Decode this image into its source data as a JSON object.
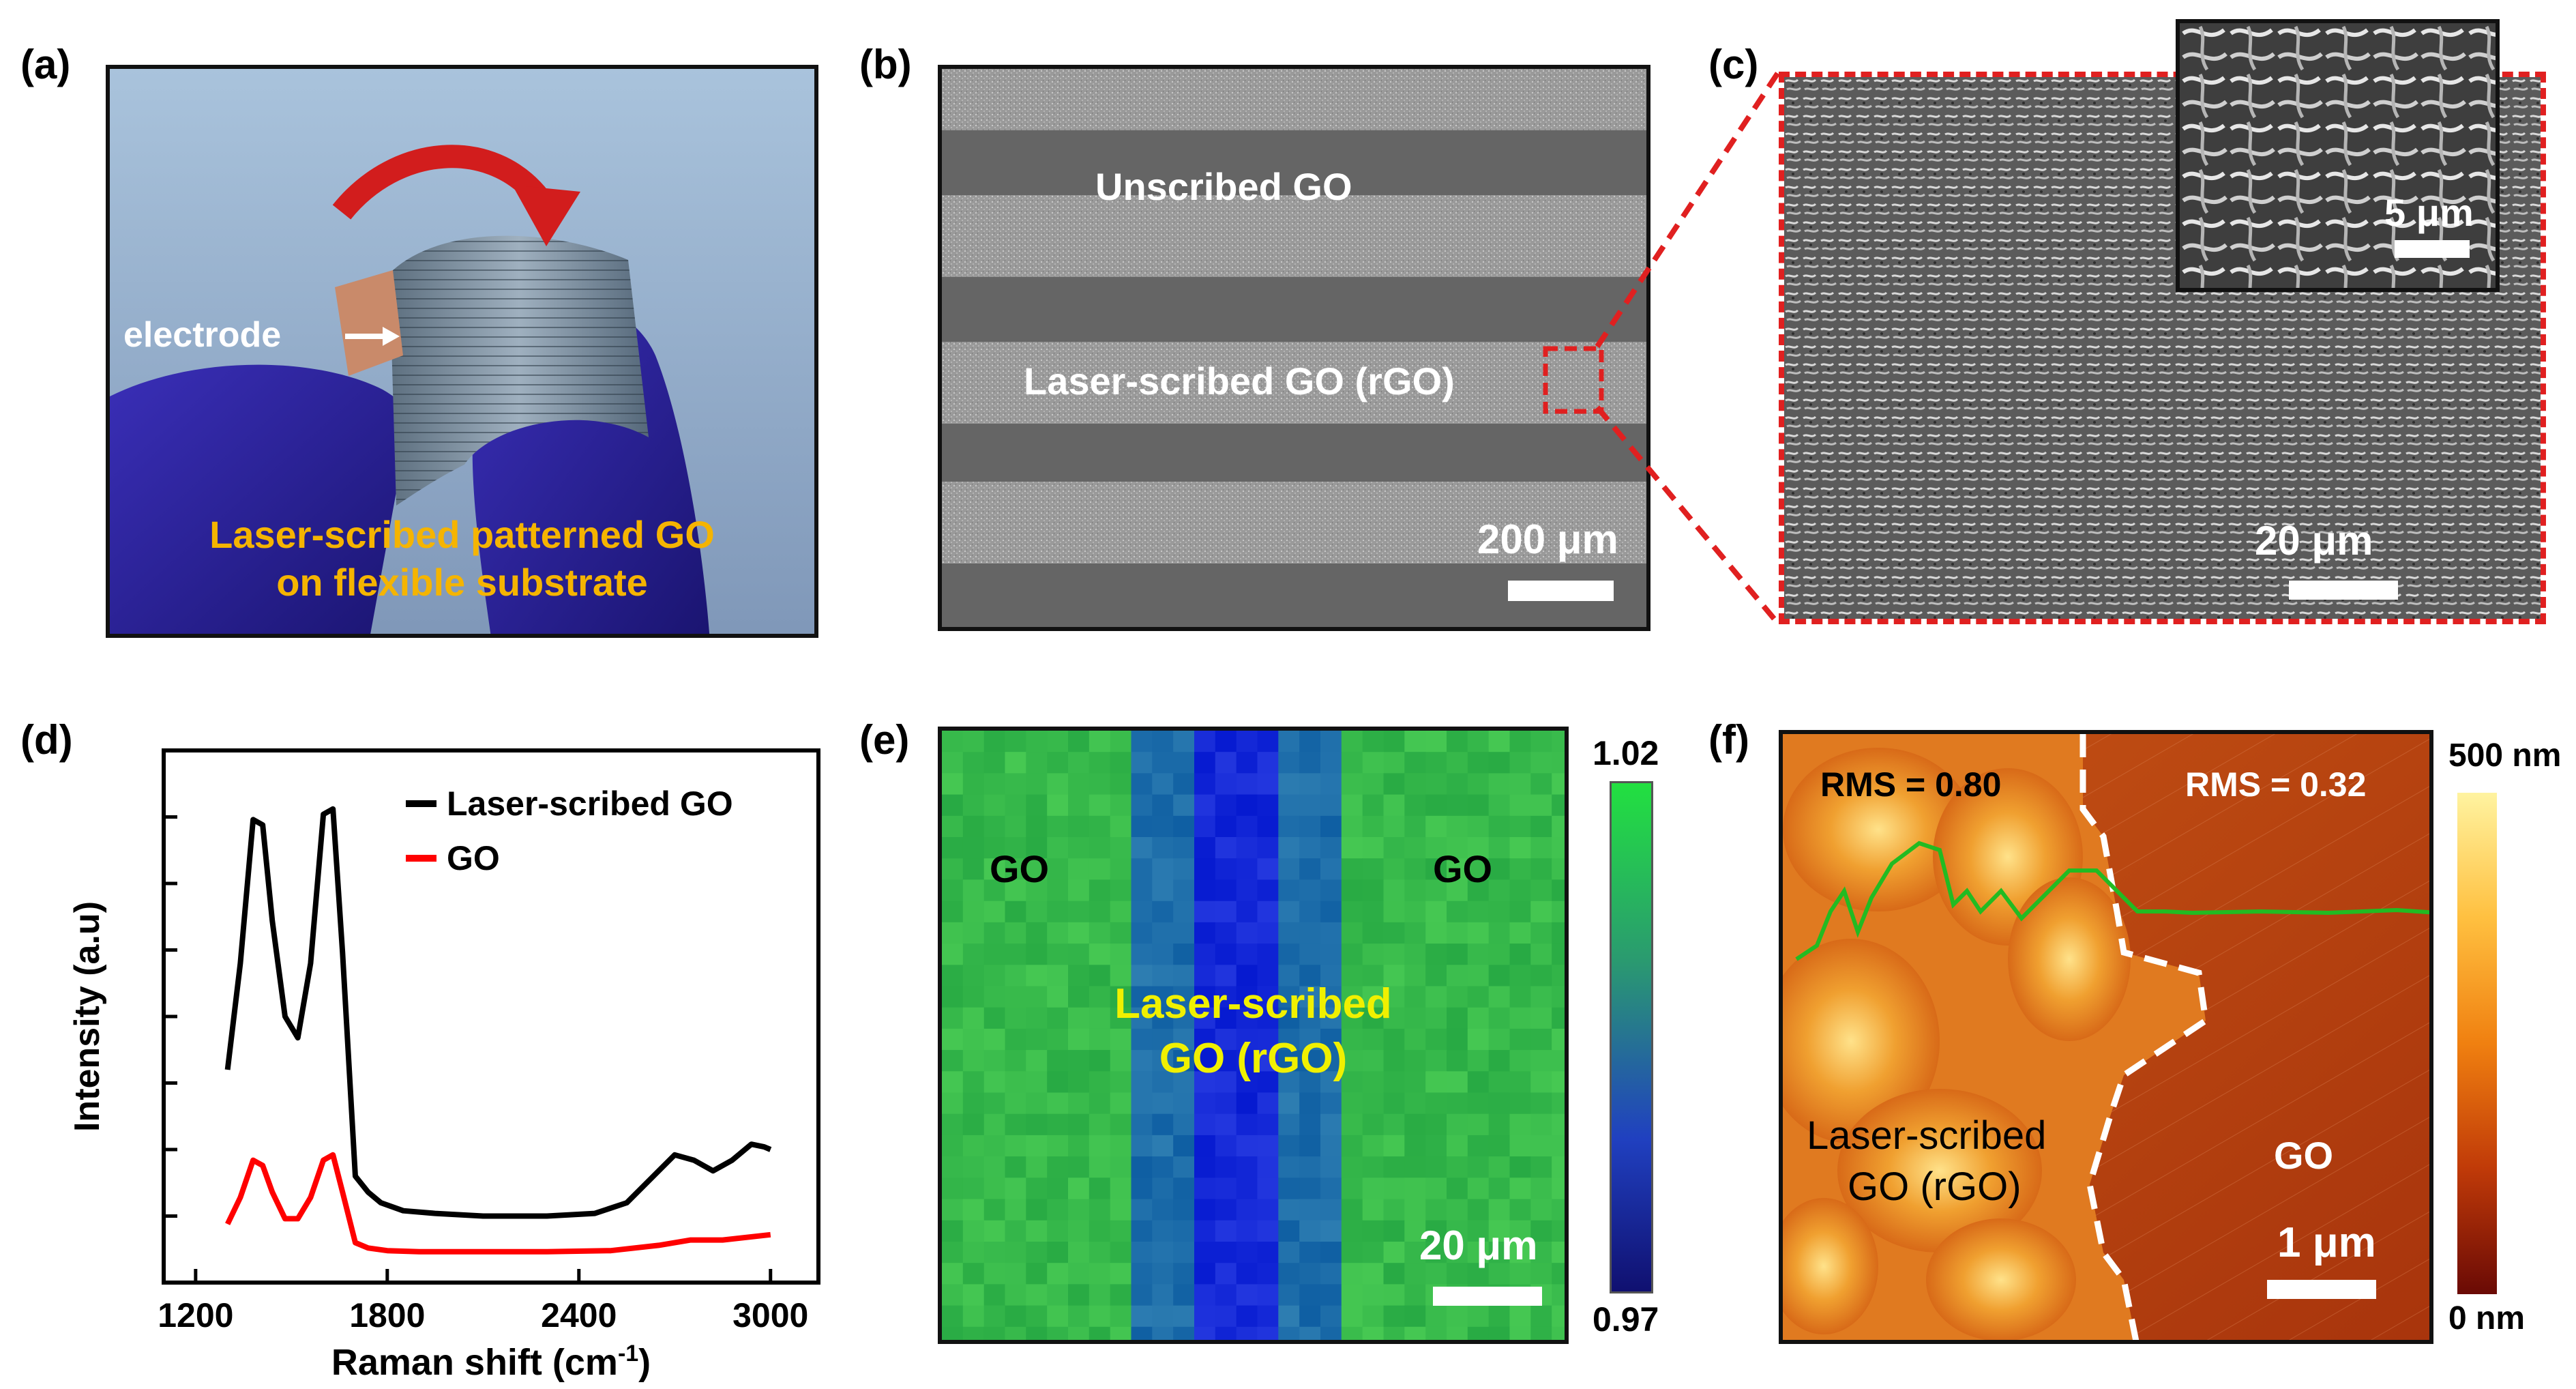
{
  "panels": {
    "a": {
      "letter": "(a)",
      "electrode_label": "electrode",
      "caption_line1": "Laser-scribed patterned GO",
      "caption_line2": "on flexible substrate"
    },
    "b": {
      "letter": "(b)",
      "unscribed_label": "Unscribed GO",
      "scribed_label": "Laser-scribed GO (rGO)",
      "scale_bar": "200 μm"
    },
    "c": {
      "letter": "(c)",
      "scale_bar": "20 μm",
      "inset_scale_bar": "5 μm"
    },
    "d": {
      "letter": "(d)",
      "legend": [
        "Laser-scribed GO",
        "GO"
      ],
      "xlabel": "Raman shift (cm",
      "xlabel_sup": "-1",
      "xlabel_end": ")",
      "ylabel": "Intensity (a.u)",
      "x_ticks": [
        "1200",
        "1800",
        "2400",
        "3000"
      ]
    },
    "e": {
      "letter": "(e)",
      "left_label": "GO",
      "right_label": "GO",
      "center_line1": "Laser-scribed",
      "center_line2": "GO (rGO)",
      "scale_bar": "20 μm",
      "colorbar_max": "1.02",
      "colorbar_min": "0.97"
    },
    "f": {
      "letter": "(f)",
      "rms_left": "RMS = 0.80",
      "rms_right": "RMS = 0.32",
      "left_line1": "Laser-scribed",
      "left_line2": "GO (rGO)",
      "right_label": "GO",
      "scale_bar": "1 μm",
      "colorbar_max": "500 nm",
      "colorbar_min": "0 nm"
    }
  },
  "chart_data": {
    "type": "line",
    "xlabel": "Raman shift (cm-1)",
    "ylabel": "Intensity (a.u)",
    "xlim": [
      1100,
      3150
    ],
    "ylim": [
      0,
      1
    ],
    "x_ticks": [
      1200,
      1800,
      2400,
      3000
    ],
    "legend_position": "top-right",
    "series": [
      {
        "name": "Laser-scribed GO",
        "color": "#000000",
        "x": [
          1300,
          1340,
          1380,
          1410,
          1440,
          1480,
          1520,
          1560,
          1600,
          1630,
          1660,
          1700,
          1740,
          1780,
          1850,
          1950,
          2100,
          2300,
          2450,
          2550,
          2650,
          2700,
          2760,
          2820,
          2880,
          2940,
          2980,
          3000
        ],
        "values": [
          0.4,
          0.6,
          0.87,
          0.86,
          0.68,
          0.5,
          0.46,
          0.6,
          0.88,
          0.89,
          0.62,
          0.2,
          0.17,
          0.15,
          0.135,
          0.13,
          0.125,
          0.125,
          0.13,
          0.15,
          0.21,
          0.24,
          0.23,
          0.21,
          0.23,
          0.26,
          0.255,
          0.25
        ]
      },
      {
        "name": "GO",
        "color": "#ff0000",
        "x": [
          1300,
          1340,
          1380,
          1410,
          1440,
          1480,
          1520,
          1560,
          1600,
          1630,
          1660,
          1700,
          1740,
          1800,
          1900,
          2100,
          2300,
          2500,
          2650,
          2750,
          2850,
          3000
        ],
        "values": [
          0.11,
          0.16,
          0.23,
          0.22,
          0.17,
          0.12,
          0.12,
          0.16,
          0.23,
          0.24,
          0.17,
          0.075,
          0.065,
          0.06,
          0.058,
          0.058,
          0.058,
          0.06,
          0.07,
          0.08,
          0.08,
          0.09
        ]
      }
    ]
  },
  "colors": {
    "frame": "#111111",
    "red_highlight": "#e02020",
    "gold_text": "#f5b400",
    "yellow_text": "#f0f000",
    "green_profile": "#22bb22"
  }
}
